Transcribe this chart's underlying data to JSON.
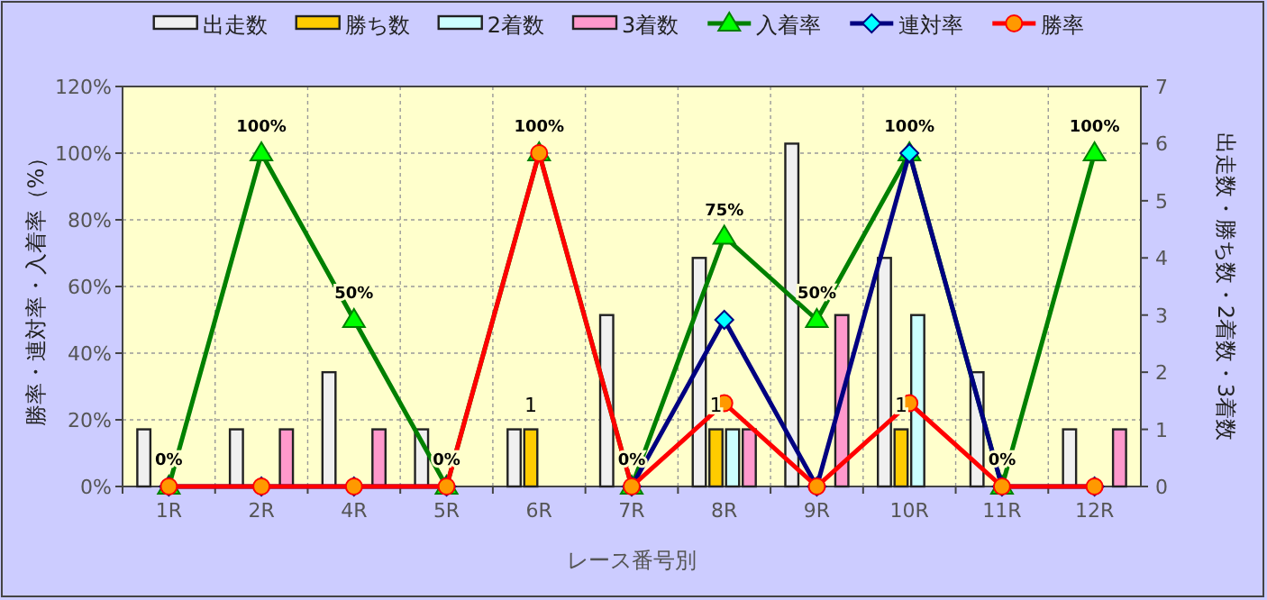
{
  "chart_data": {
    "type": "bar",
    "categories": [
      "1R",
      "2R",
      "4R",
      "5R",
      "6R",
      "7R",
      "8R",
      "9R",
      "10R",
      "11R",
      "12R"
    ],
    "xlabel": "レース番号別",
    "ylabel": "勝率・連対率・入着率（%）",
    "y2label": "出走数・勝ち数・2着数・3着数",
    "ylim": [
      0,
      120
    ],
    "yticks": [
      {
        "value": 0,
        "label": "0%"
      },
      {
        "value": 20,
        "label": "20%"
      },
      {
        "value": 40,
        "label": "40%"
      },
      {
        "value": 60,
        "label": "60%"
      },
      {
        "value": 80,
        "label": "80%"
      },
      {
        "value": 100,
        "label": "100%"
      },
      {
        "value": 120,
        "label": "120%"
      }
    ],
    "y2lim": [
      0,
      7
    ],
    "y2ticks": [
      0,
      1,
      2,
      3,
      4,
      5,
      6,
      7
    ],
    "grid": true,
    "legend": "top",
    "series": [
      {
        "name": "出走数",
        "type": "bar",
        "axis": "y2",
        "color": "#f0f0f0",
        "values": [
          1,
          1,
          2,
          1,
          1,
          3,
          4,
          6,
          4,
          2,
          1
        ]
      },
      {
        "name": "勝ち数",
        "type": "bar",
        "axis": "y2",
        "color": "#ffcc00",
        "values": [
          0,
          0,
          0,
          0,
          1,
          0,
          1,
          0,
          1,
          0,
          0
        ],
        "value_labels": [
          null,
          null,
          null,
          null,
          "1",
          null,
          "1",
          null,
          "1",
          null,
          null
        ]
      },
      {
        "name": "2着数",
        "type": "bar",
        "axis": "y2",
        "color": "#ccffff",
        "values": [
          0,
          0,
          0,
          0,
          0,
          0,
          1,
          0,
          3,
          0,
          0
        ]
      },
      {
        "name": "3着数",
        "type": "bar",
        "axis": "y2",
        "color": "#ff99cc",
        "values": [
          0,
          1,
          1,
          0,
          0,
          0,
          1,
          3,
          0,
          0,
          1
        ]
      },
      {
        "name": "入着率",
        "type": "line",
        "color": "#008000",
        "marker": "triangle",
        "values": [
          0,
          100,
          50,
          0,
          100,
          0,
          75,
          50,
          100,
          0,
          100
        ],
        "value_labels": [
          "0%",
          "100%",
          "50%",
          "0%",
          "100%",
          "0%",
          "75%",
          "50%",
          "100%",
          "0%",
          "100%"
        ]
      },
      {
        "name": "連対率",
        "type": "line",
        "color": "#000080",
        "marker": "diamond",
        "values": [
          0,
          0,
          0,
          0,
          null,
          0,
          50,
          0,
          100,
          0,
          0
        ]
      },
      {
        "name": "勝率",
        "type": "line",
        "color": "#ff0000",
        "marker": "circle",
        "values": [
          0,
          0,
          0,
          0,
          100,
          0,
          25,
          0,
          25,
          0,
          0
        ]
      }
    ]
  }
}
